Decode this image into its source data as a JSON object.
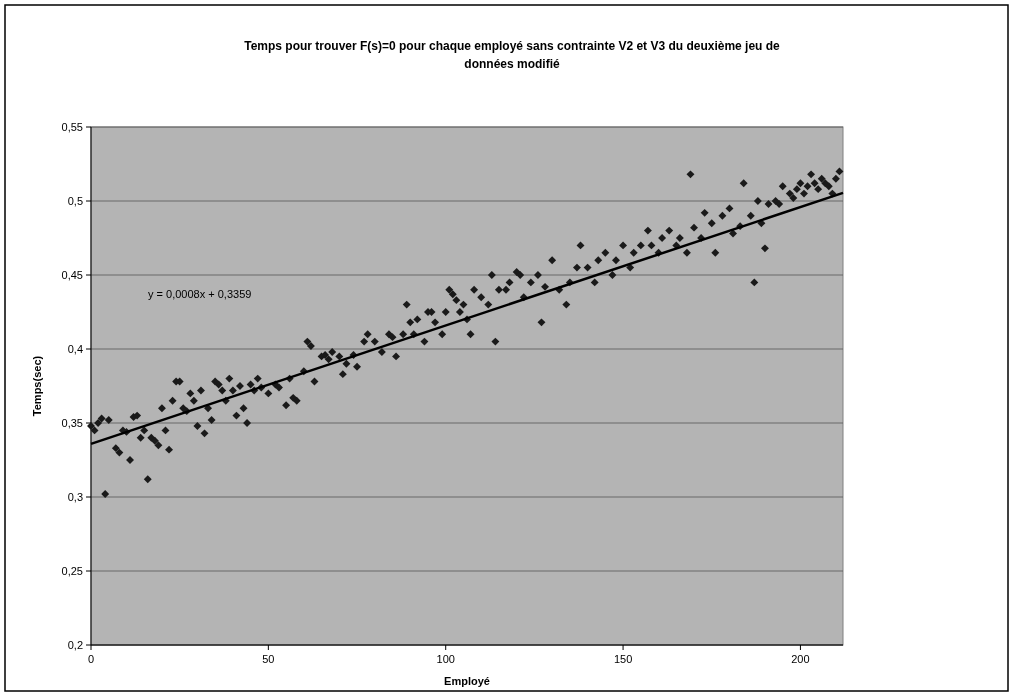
{
  "chart_data": {
    "type": "scatter",
    "title": "Temps pour trouver F(s)=0 pour chaque employé sans contrainte V2 et V3 du deuxième jeu de données modifié",
    "xlabel": "Employé",
    "ylabel": "Temps(sec)",
    "annotations": [
      "y = 0,0008x + 0,3359"
    ],
    "xlim": [
      0,
      212
    ],
    "xticks": [
      0,
      50,
      100,
      150,
      200
    ],
    "ylim": [
      0.2,
      0.55
    ],
    "yticks": [
      {
        "value": 0.2,
        "label": "0,2"
      },
      {
        "value": 0.25,
        "label": "0,25"
      },
      {
        "value": 0.3,
        "label": "0,3"
      },
      {
        "value": 0.35,
        "label": "0,35"
      },
      {
        "value": 0.4,
        "label": "0,4"
      },
      {
        "value": 0.45,
        "label": "0,45"
      },
      {
        "value": 0.5,
        "label": "0,5"
      },
      {
        "value": 0.55,
        "label": "0,55"
      }
    ],
    "grid": "y",
    "series": [
      {
        "marker": "diamond",
        "color": "#1a1a1a",
        "x": [
          0,
          1,
          2,
          3,
          4,
          5,
          7,
          8,
          9,
          10,
          11,
          12,
          13,
          14,
          15,
          16,
          17,
          18,
          19,
          20,
          21,
          22,
          23,
          24,
          25,
          26,
          27,
          28,
          29,
          30,
          31,
          32,
          33,
          34,
          35,
          36,
          37,
          38,
          39,
          40,
          41,
          42,
          43,
          44,
          45,
          46,
          47,
          48,
          50,
          52,
          53,
          55,
          56,
          57,
          58,
          60,
          61,
          62,
          63,
          65,
          66,
          67,
          68,
          70,
          71,
          72,
          74,
          75,
          77,
          78,
          80,
          82,
          84,
          85,
          86,
          88,
          89,
          90,
          91,
          92,
          94,
          95,
          96,
          97,
          99,
          100,
          101,
          102,
          103,
          104,
          105,
          106,
          107,
          108,
          110,
          112,
          113,
          114,
          115,
          117,
          118,
          120,
          121,
          122,
          124,
          126,
          127,
          128,
          130,
          132,
          134,
          135,
          137,
          138,
          140,
          142,
          143,
          145,
          147,
          148,
          150,
          152,
          153,
          155,
          157,
          158,
          160,
          161,
          163,
          165,
          166,
          168,
          169,
          170,
          172,
          173,
          175,
          176,
          178,
          180,
          181,
          183,
          184,
          186,
          187,
          188,
          189,
          190,
          191,
          193,
          194,
          195,
          197,
          198,
          199,
          200,
          201,
          202,
          203,
          204,
          205,
          206,
          207,
          208,
          209,
          210,
          211
        ],
        "values": [
          0.348,
          0.345,
          0.35,
          0.353,
          0.302,
          0.352,
          0.333,
          0.33,
          0.345,
          0.344,
          0.325,
          0.354,
          0.355,
          0.34,
          0.345,
          0.312,
          0.34,
          0.338,
          0.335,
          0.36,
          0.345,
          0.332,
          0.365,
          0.378,
          0.378,
          0.36,
          0.358,
          0.37,
          0.365,
          0.348,
          0.372,
          0.343,
          0.36,
          0.352,
          0.378,
          0.376,
          0.372,
          0.365,
          0.38,
          0.372,
          0.355,
          0.375,
          0.36,
          0.35,
          0.376,
          0.372,
          0.38,
          0.374,
          0.37,
          0.376,
          0.374,
          0.362,
          0.38,
          0.367,
          0.365,
          0.385,
          0.405,
          0.402,
          0.378,
          0.395,
          0.396,
          0.393,
          0.398,
          0.395,
          0.383,
          0.39,
          0.396,
          0.388,
          0.405,
          0.41,
          0.405,
          0.398,
          0.41,
          0.408,
          0.395,
          0.41,
          0.43,
          0.418,
          0.41,
          0.42,
          0.405,
          0.425,
          0.425,
          0.418,
          0.41,
          0.425,
          0.44,
          0.437,
          0.433,
          0.425,
          0.43,
          0.42,
          0.41,
          0.44,
          0.435,
          0.43,
          0.45,
          0.405,
          0.44,
          0.44,
          0.445,
          0.452,
          0.45,
          0.435,
          0.445,
          0.45,
          0.418,
          0.442,
          0.46,
          0.44,
          0.43,
          0.445,
          0.455,
          0.47,
          0.455,
          0.445,
          0.46,
          0.465,
          0.45,
          0.46,
          0.47,
          0.455,
          0.465,
          0.47,
          0.48,
          0.47,
          0.465,
          0.475,
          0.48,
          0.47,
          0.475,
          0.465,
          0.518,
          0.482,
          0.475,
          0.492,
          0.485,
          0.465,
          0.49,
          0.495,
          0.478,
          0.483,
          0.512,
          0.49,
          0.445,
          0.5,
          0.485,
          0.468,
          0.498,
          0.5,
          0.498,
          0.51,
          0.505,
          0.502,
          0.508,
          0.512,
          0.505,
          0.51,
          0.518,
          0.512,
          0.508,
          0.515,
          0.512,
          0.51,
          0.505,
          0.515,
          0.52
        ]
      },
      {
        "type": "line",
        "marker": "none",
        "line_style": "solid",
        "color": "#000000",
        "x": [
          0,
          212
        ],
        "values": [
          0.3359,
          0.5055
        ]
      }
    ]
  }
}
